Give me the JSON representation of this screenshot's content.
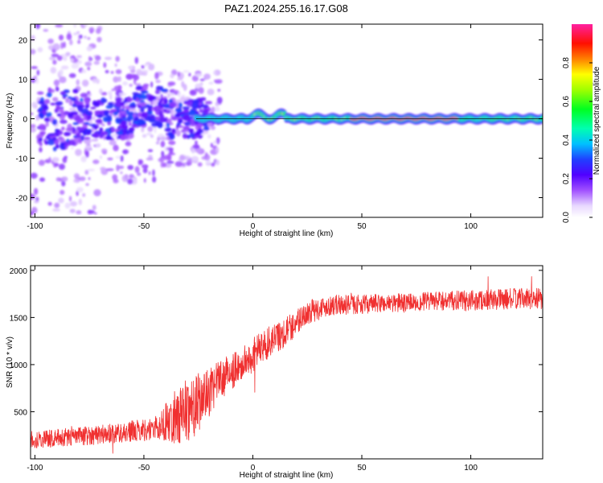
{
  "title": "PAZ1.2024.255.16.17.G08",
  "colors": {
    "snr_line": "#f03030",
    "axis": "#000000",
    "background": "#ffffff"
  },
  "chart_data": [
    {
      "type": "heatmap",
      "xlabel": "Height of straight line (km)",
      "ylabel": "Frequency (Hz)",
      "xlim": [
        -102,
        133
      ],
      "ylim": [
        -25,
        24
      ],
      "x_ticks": [
        -100,
        -50,
        0,
        50,
        100
      ],
      "y_ticks": [
        20,
        10,
        0,
        -10,
        -20
      ],
      "colorbar": {
        "label": "Normalized spectral amplitude",
        "range": [
          0,
          1
        ],
        "ticks": [
          0.0,
          0.2,
          0.4,
          0.6,
          0.8
        ],
        "colormap": "rainbow (white-violet-blue-cyan-green-yellow-red-magenta)"
      },
      "features": {
        "main_ridge_frequency_hz": 0,
        "noisy_region_x_range_km": [
          -102,
          -25
        ],
        "strong_region_x_range_km": [
          45,
          95
        ],
        "peak_amplitude_normalized": 0.9
      }
    },
    {
      "type": "line",
      "xlabel": "Height of straight line (km)",
      "ylabel": "SNR (10 * v/v)",
      "xlim": [
        -102,
        133
      ],
      "ylim": [
        0,
        2050
      ],
      "x_ticks": [
        -100,
        -50,
        0,
        50,
        100
      ],
      "y_ticks": [
        500,
        1000,
        1500,
        2000
      ],
      "series": [
        {
          "anchors_x": [
            -102,
            -80,
            -60,
            -45,
            -35,
            -28,
            -20,
            -15,
            -5,
            0,
            5,
            15,
            25,
            35,
            50,
            80,
            100,
            120,
            133
          ],
          "anchors_y": [
            200,
            240,
            280,
            320,
            450,
            550,
            700,
            850,
            1000,
            1100,
            1200,
            1350,
            1550,
            1630,
            1640,
            1670,
            1680,
            1700,
            1700
          ],
          "noise_amplitude": [
            90,
            100,
            110,
            120,
            300,
            350,
            250,
            200,
            180,
            180,
            180,
            160,
            130,
            110,
            100,
            100,
            110,
            110,
            110
          ]
        }
      ]
    }
  ]
}
